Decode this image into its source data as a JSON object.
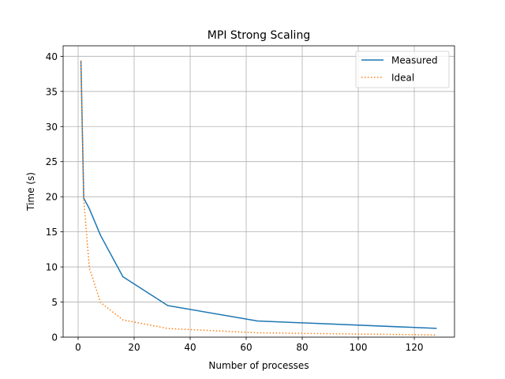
{
  "chart_data": {
    "type": "line",
    "title": "MPI Strong Scaling",
    "xlabel": "Number of processes",
    "ylabel": "Time (s)",
    "xlim": [
      -5.35,
      134.35
    ],
    "ylim": [
      0,
      41.5
    ],
    "xticks": [
      0,
      20,
      40,
      60,
      80,
      100,
      120
    ],
    "yticks": [
      0,
      5,
      10,
      15,
      20,
      25,
      30,
      35,
      40
    ],
    "grid": true,
    "legend_position": "top-right",
    "series": [
      {
        "name": "Measured",
        "style": "solid",
        "color": "#1f77b4",
        "x": [
          1,
          2,
          4,
          8,
          16,
          32,
          64,
          128
        ],
        "y": [
          39.4,
          19.8,
          18.3,
          14.5,
          8.6,
          4.5,
          2.3,
          1.25
        ]
      },
      {
        "name": "Ideal",
        "style": "dotted",
        "color": "#ff7f0e",
        "x": [
          1,
          2,
          4,
          8,
          16,
          32,
          64,
          128
        ],
        "y": [
          39.4,
          19.7,
          9.85,
          4.93,
          2.46,
          1.23,
          0.62,
          0.31
        ]
      }
    ]
  }
}
